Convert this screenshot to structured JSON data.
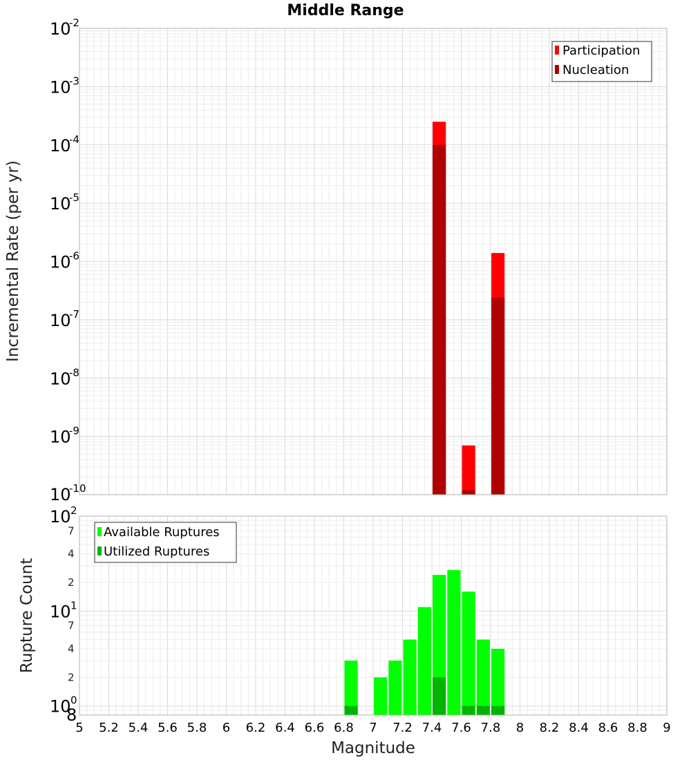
{
  "chart_data": [
    {
      "type": "bar",
      "title": "Middle Range",
      "ylabel": "Incremental Rate (per yr)",
      "xlim": [
        5,
        9
      ],
      "ylim_exp": [
        -10,
        -2
      ],
      "yscale": "log",
      "y_ticks": [
        "10",
        "10",
        "10",
        "10",
        "10",
        "10",
        "10",
        "10",
        "10"
      ],
      "y_tick_exps": [
        "-10",
        "-9",
        "-8",
        "-7",
        "-6",
        "-5",
        "-4",
        "-3",
        "-2"
      ],
      "grid": true,
      "legend_position": "top-right",
      "bar_width": 0.09,
      "series": [
        {
          "name": "Participation",
          "color": "#ff0000",
          "x": [
            7.45,
            7.65,
            7.85
          ],
          "values": [
            0.00025,
            7e-10,
            1.4e-06
          ]
        },
        {
          "name": "Nucleation",
          "color": "#b00000",
          "x": [
            7.45,
            7.65,
            7.85
          ],
          "values": [
            0.0001,
            1.2e-10,
            2.4e-07
          ]
        }
      ]
    },
    {
      "type": "bar",
      "ylabel": "Rupture Count",
      "xlabel": "Magnitude",
      "xlim": [
        5,
        9
      ],
      "ylim": [
        0.8,
        100
      ],
      "yscale": "log",
      "x_ticks": [
        "5",
        "5.2",
        "5.4",
        "5.6",
        "5.8",
        "6",
        "6.2",
        "6.4",
        "6.6",
        "6.8",
        "7",
        "7.2",
        "7.4",
        "7.6",
        "7.8",
        "8",
        "8.2",
        "8.4",
        "8.6",
        "8.8",
        "9"
      ],
      "y_major_ticks": [
        {
          "value": 1,
          "label": "10",
          "exp": "0"
        },
        {
          "value": 10,
          "label": "10",
          "exp": "1"
        },
        {
          "value": 100,
          "label": "10",
          "exp": "2"
        }
      ],
      "y_minor_labels": [
        {
          "value": 0.8,
          "label": "8"
        },
        {
          "value": 2,
          "label": "2"
        },
        {
          "value": 4,
          "label": "4"
        },
        {
          "value": 7,
          "label": "7"
        },
        {
          "value": 20,
          "label": "2"
        },
        {
          "value": 40,
          "label": "4"
        },
        {
          "value": 70,
          "label": "7"
        }
      ],
      "grid": true,
      "legend_position": "top-left",
      "bar_width": 0.09,
      "series": [
        {
          "name": "Available Ruptures",
          "color": "#00ff00",
          "x": [
            6.85,
            7.05,
            7.15,
            7.25,
            7.35,
            7.45,
            7.55,
            7.65,
            7.75,
            7.85
          ],
          "values": [
            3,
            2,
            3,
            5,
            11,
            24,
            27,
            16,
            5,
            4
          ]
        },
        {
          "name": "Utilized Ruptures",
          "color": "#00b400",
          "x": [
            6.85,
            7.45,
            7.65,
            7.75,
            7.85
          ],
          "values": [
            1,
            2,
            1,
            1,
            1
          ]
        }
      ]
    }
  ]
}
